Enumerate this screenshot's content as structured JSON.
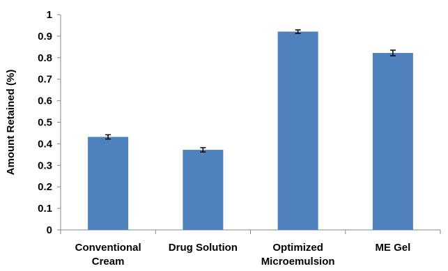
{
  "chart_data": {
    "type": "bar",
    "title": "",
    "xlabel": "",
    "ylabel": "Amount Retained (%)",
    "ylim": [
      0,
      1
    ],
    "yticks": [
      "0",
      "0.1",
      "0.2",
      "0.3",
      "0.4",
      "0.5",
      "0.6",
      "0.7",
      "0.8",
      "0.9",
      "1"
    ],
    "categories": [
      [
        "Conventional",
        "Cream"
      ],
      [
        "Drug Solution"
      ],
      [
        "Optimized",
        "Microemulsion"
      ],
      [
        "ME Gel"
      ]
    ],
    "values": [
      0.432,
      0.372,
      0.921,
      0.822
    ],
    "errors": [
      0.01,
      0.01,
      0.008,
      0.013
    ],
    "grid": false,
    "legend": "none",
    "bar_color": "#4f81bd"
  }
}
